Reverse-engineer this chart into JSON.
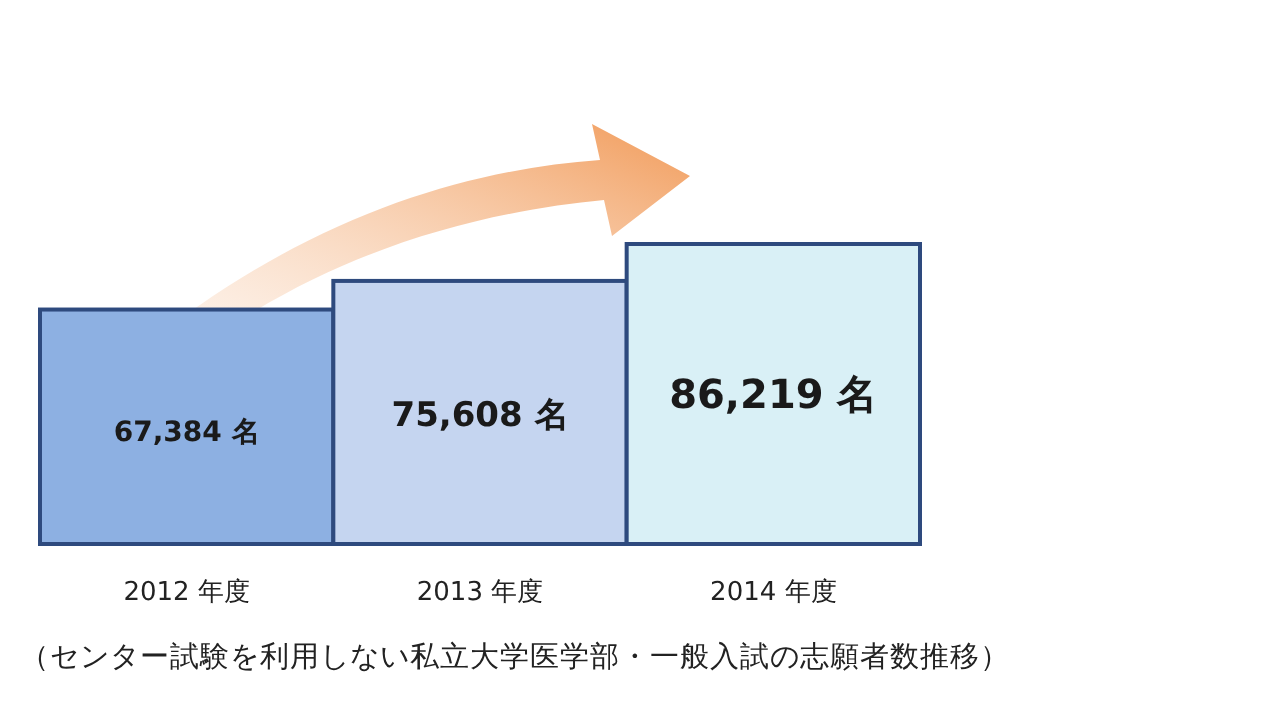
{
  "chart_data": {
    "type": "bar",
    "categories": [
      "2012 年度",
      "2013 年度",
      "2014 年度"
    ],
    "values": [
      67384,
      75608,
      86219
    ],
    "colors": [
      "#8db0e2",
      "#c5d5f0",
      "#d9f0f6"
    ],
    "value_labels": [
      "67,384 名",
      "75,608 名",
      "86,219 名"
    ],
    "annotations": [
      "（センター試験を利用しない私立大学医学部・一般入試の志願者数推移）"
    ]
  }
}
